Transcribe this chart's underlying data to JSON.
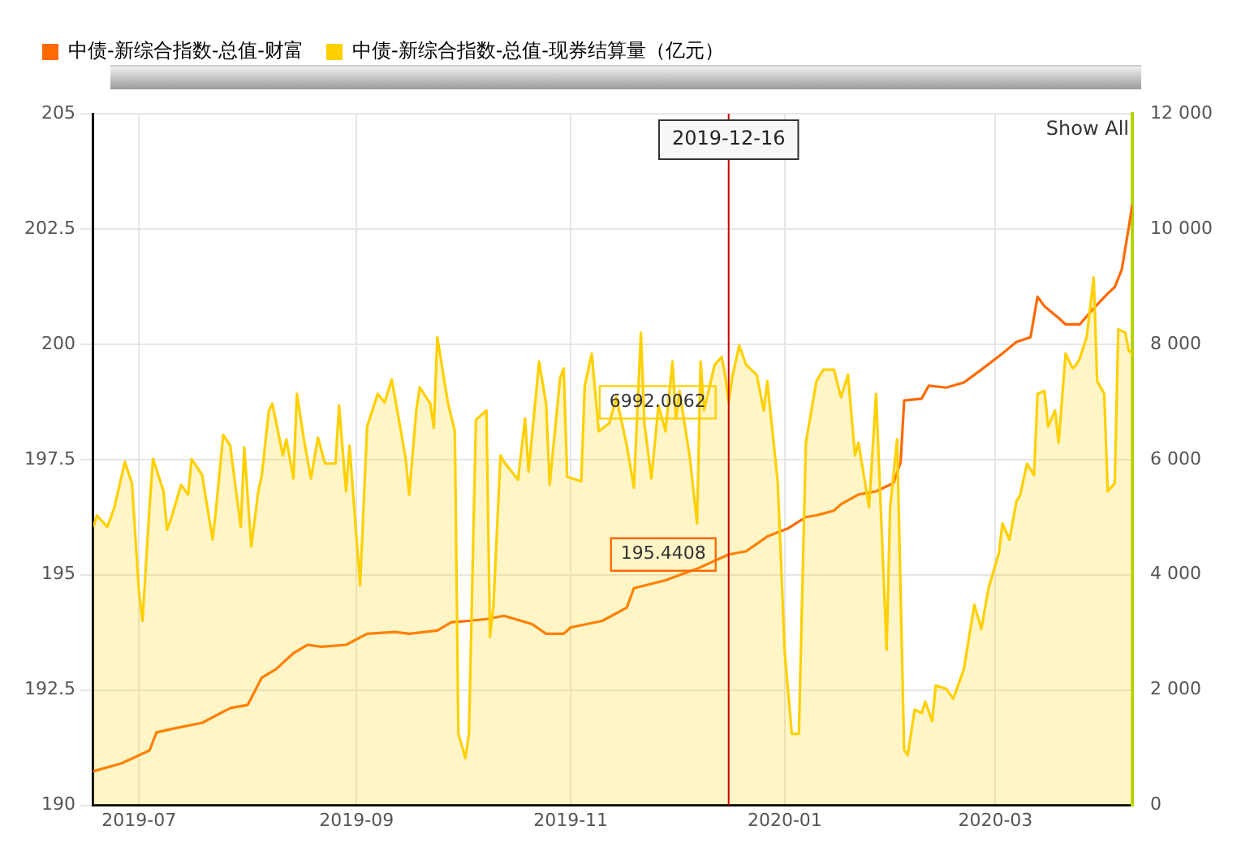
{
  "chart_data": {
    "type": "line",
    "xlim": [
      "2019-06-18",
      "2020-04-09"
    ],
    "xticks": [
      "2019-07",
      "2019-09",
      "2019-11",
      "2020-01",
      "2020-03"
    ],
    "ylim": [
      190,
      205
    ],
    "yticks": [
      190,
      192.5,
      195,
      197.5,
      200,
      202.5,
      205
    ],
    "y2lim": [
      0,
      12000
    ],
    "y2ticks": [
      0,
      {
        "value": 2000,
        "label": "2 000"
      },
      {
        "value": 4000,
        "label": "4 000"
      },
      {
        "value": 6000,
        "label": "6 000"
      },
      {
        "value": 8000,
        "label": "8 000"
      },
      {
        "value": 10000,
        "label": "10 000"
      },
      {
        "value": 12000,
        "label": "12 000"
      }
    ],
    "grid": true,
    "legend": "top left",
    "series": [
      {
        "name": "中债-新综合指数-总值-财富",
        "type": "line",
        "color": "#ff6a00",
        "x": [
          "2019-06-18",
          "2019-06-26",
          "2019-07-04",
          "2019-07-06",
          "2019-07-10",
          "2019-07-19",
          "2019-07-27",
          "2019-08-01",
          "2019-08-05",
          "2019-08-09",
          "2019-08-14",
          "2019-08-18",
          "2019-08-22",
          "2019-08-29",
          "2019-09-04",
          "2019-09-12",
          "2019-09-16",
          "2019-09-24",
          "2019-09-28",
          "2019-10-03",
          "2019-10-08",
          "2019-10-13",
          "2019-10-21",
          "2019-10-25",
          "2019-10-30",
          "2019-11-01",
          "2019-11-10",
          "2019-11-17",
          "2019-11-19",
          "2019-11-28",
          "2019-12-07",
          "2019-12-16",
          "2019-12-21",
          "2019-12-27",
          "2020-01-02",
          "2020-01-07",
          "2020-01-10",
          "2020-01-15",
          "2020-01-17",
          "2020-01-22",
          "2020-01-27",
          "2020-02-01",
          "2020-02-03",
          "2020-02-04",
          "2020-02-09",
          "2020-02-11",
          "2020-02-16",
          "2020-02-21",
          "2020-02-26",
          "2020-03-03",
          "2020-03-07",
          "2020-03-11",
          "2020-03-13",
          "2020-03-15",
          "2020-03-19",
          "2020-03-21",
          "2020-03-25",
          "2020-03-29",
          "2020-04-02",
          "2020-04-04",
          "2020-04-06",
          "2020-04-08",
          "2020-04-09"
        ],
        "values": [
          190.74,
          190.91,
          191.19,
          191.58,
          191.65,
          191.79,
          192.11,
          192.18,
          192.77,
          192.95,
          193.3,
          193.48,
          193.44,
          193.48,
          193.72,
          193.76,
          193.72,
          193.79,
          193.97,
          194.0,
          194.04,
          194.11,
          193.93,
          193.72,
          193.72,
          193.86,
          194.0,
          194.29,
          194.71,
          194.88,
          195.13,
          195.4408,
          195.51,
          195.83,
          196.01,
          196.25,
          196.29,
          196.39,
          196.53,
          196.74,
          196.81,
          196.99,
          197.45,
          198.78,
          198.82,
          199.1,
          199.06,
          199.17,
          199.45,
          199.8,
          200.05,
          200.15,
          201.03,
          200.82,
          200.57,
          200.43,
          200.43,
          200.78,
          201.1,
          201.24,
          201.62,
          202.54,
          203.03
        ],
        "value_labels": [
          null,
          null,
          null,
          null,
          null,
          null,
          null,
          null,
          null,
          null,
          null,
          null,
          null,
          null,
          null,
          null,
          null,
          null,
          null,
          null,
          null,
          null,
          null,
          null,
          null,
          null,
          null,
          null,
          null,
          null,
          null,
          "195.4408",
          null,
          null,
          null,
          null,
          null,
          null,
          null,
          null,
          null,
          null,
          null,
          null,
          null,
          null,
          null,
          null,
          null,
          null,
          null,
          null,
          null,
          null,
          null,
          null,
          null,
          null,
          null,
          null,
          null,
          null,
          null
        ]
      },
      {
        "name": "中债-新综合指数-总值-现券结算量（亿元）",
        "type": "area",
        "axis": "y2",
        "color": "#ffd000",
        "x": [
          "2019-06-18",
          "2019-06-19",
          "2019-06-22",
          "2019-06-24",
          "2019-06-27",
          "2019-06-29",
          "2019-07-01",
          "2019-07-02",
          "2019-07-04",
          "2019-07-05",
          "2019-07-08",
          "2019-07-09",
          "2019-07-10",
          "2019-07-13",
          "2019-07-15",
          "2019-07-16",
          "2019-07-19",
          "2019-07-22",
          "2019-07-23",
          "2019-07-25",
          "2019-07-27",
          "2019-07-30",
          "2019-07-31",
          "2019-08-02",
          "2019-08-04",
          "2019-08-05",
          "2019-08-07",
          "2019-08-08",
          "2019-08-11",
          "2019-08-12",
          "2019-08-14",
          "2019-08-15",
          "2019-08-17",
          "2019-08-19",
          "2019-08-21",
          "2019-08-23",
          "2019-08-26",
          "2019-08-27",
          "2019-08-29",
          "2019-08-30",
          "2019-09-02",
          "2019-09-04",
          "2019-09-07",
          "2019-09-09",
          "2019-09-11",
          "2019-09-13",
          "2019-09-15",
          "2019-09-16",
          "2019-09-18",
          "2019-09-19",
          "2019-09-22",
          "2019-09-23",
          "2019-09-24",
          "2019-09-27",
          "2019-09-29",
          "2019-09-30",
          "2019-10-02",
          "2019-10-03",
          "2019-10-05",
          "2019-10-08",
          "2019-10-09",
          "2019-10-10",
          "2019-10-12",
          "2019-10-13",
          "2019-10-17",
          "2019-10-19",
          "2019-10-20",
          "2019-10-23",
          "2019-10-25",
          "2019-10-26",
          "2019-10-29",
          "2019-10-30",
          "2019-10-31",
          "2019-11-04",
          "2019-11-05",
          "2019-11-07",
          "2019-11-09",
          "2019-11-12",
          "2019-11-14",
          "2019-11-17",
          "2019-11-19",
          "2019-11-21",
          "2019-11-22",
          "2019-11-24",
          "2019-11-26",
          "2019-11-28",
          "2019-11-30",
          "2019-12-01",
          "2019-12-02",
          "2019-12-05",
          "2019-12-07",
          "2019-12-08",
          "2019-12-09",
          "2019-12-12",
          "2019-12-14",
          "2019-12-15",
          "2019-12-16",
          "2019-12-17",
          "2019-12-19",
          "2019-12-21",
          "2019-12-24",
          "2019-12-26",
          "2019-12-27",
          "2019-12-30",
          "2020-01-01",
          "2020-01-03",
          "2020-01-05",
          "2020-01-07",
          "2020-01-10",
          "2020-01-12",
          "2020-01-15",
          "2020-01-17",
          "2020-01-19",
          "2020-01-21",
          "2020-01-22",
          "2020-01-25",
          "2020-01-27",
          "2020-01-30",
          "2020-01-31",
          "2020-02-02",
          "2020-02-04",
          "2020-02-05",
          "2020-02-07",
          "2020-02-09",
          "2020-02-10",
          "2020-02-12",
          "2020-02-13",
          "2020-02-16",
          "2020-02-18",
          "2020-02-21",
          "2020-02-24",
          "2020-02-26",
          "2020-02-28",
          "2020-03-02",
          "2020-03-03",
          "2020-03-05",
          "2020-03-07",
          "2020-03-08",
          "2020-03-10",
          "2020-03-12",
          "2020-03-13",
          "2020-03-15",
          "2020-03-16",
          "2020-03-18",
          "2020-03-19",
          "2020-03-21",
          "2020-03-23",
          "2020-03-24",
          "2020-03-25",
          "2020-03-27",
          "2020-03-29",
          "2020-03-30",
          "2020-04-01",
          "2020-04-02",
          "2020-04-04",
          "2020-04-05",
          "2020-04-07",
          "2020-04-08",
          "2020-04-09"
        ],
        "values": [
          4830,
          5030,
          4830,
          5170,
          5960,
          5590,
          3710,
          3200,
          5170,
          6010,
          5450,
          4780,
          4940,
          5560,
          5390,
          6010,
          5730,
          4610,
          5170,
          6430,
          6240,
          4830,
          6210,
          4490,
          5450,
          5730,
          6850,
          6970,
          6070,
          6350,
          5670,
          7140,
          6350,
          5670,
          6380,
          5930,
          5930,
          6940,
          5450,
          6240,
          3820,
          6570,
          7140,
          6990,
          7390,
          6710,
          6010,
          5390,
          6850,
          7250,
          6970,
          6550,
          8120,
          6990,
          6490,
          1240,
          820,
          1240,
          6690,
          6850,
          2920,
          3480,
          6070,
          5960,
          5650,
          6710,
          5790,
          7700,
          6970,
          5560,
          7420,
          7580,
          5700,
          5620,
          7280,
          7840,
          6490,
          6630,
          7080,
          6240,
          5510,
          8200,
          6630,
          5670,
          6940,
          6490,
          7700,
          6710,
          7190,
          6010,
          4890,
          7700,
          6850,
          7640,
          7780,
          7470,
          6992.0062,
          7420,
          7980,
          7640,
          7470,
          6850,
          7360,
          5590,
          2640,
          1240,
          1240,
          6290,
          7360,
          7560,
          7560,
          7080,
          7470,
          6070,
          6290,
          5170,
          7140,
          2700,
          5170,
          6350,
          960,
          870,
          1660,
          1600,
          1800,
          1460,
          2080,
          2020,
          1850,
          2360,
          3480,
          3060,
          3760,
          4380,
          4890,
          4610,
          5280,
          5370,
          5930,
          5730,
          7140,
          7190,
          6570,
          6850,
          6290,
          7840,
          7580,
          7640,
          7750,
          8120,
          9160,
          7360,
          7140,
          5450,
          5590,
          8260,
          8200,
          7890,
          7840
        ],
        "value_labels": [
          null,
          null,
          null,
          null,
          null,
          null,
          null,
          null,
          null,
          null,
          null,
          null,
          null,
          null,
          null,
          null,
          null,
          null,
          null,
          null,
          null,
          null,
          null,
          null,
          null,
          null,
          null,
          null,
          null,
          null,
          null,
          null,
          null,
          null,
          null,
          null,
          null,
          null,
          null,
          null,
          null,
          null,
          null,
          null,
          null,
          null,
          null,
          null,
          null,
          null,
          null,
          null,
          null,
          null,
          null,
          null,
          null,
          null,
          null,
          null,
          null,
          null,
          null,
          null,
          null,
          null,
          null,
          null,
          null,
          null,
          null,
          null,
          null,
          null,
          null,
          null,
          null,
          null,
          null,
          null,
          null,
          null,
          null,
          null,
          null,
          null,
          null,
          null,
          null,
          null,
          null,
          null,
          null,
          null,
          null,
          null,
          "6992.0062",
          null,
          null,
          null,
          null,
          null,
          null,
          null,
          null,
          null,
          null,
          null,
          null,
          null,
          null,
          null,
          null,
          null,
          null,
          null,
          null,
          null,
          null,
          null,
          null,
          null,
          null,
          null,
          null,
          null,
          null,
          null,
          null,
          null,
          null,
          null,
          null,
          null,
          null,
          null,
          null,
          null,
          null,
          null,
          null,
          null,
          null,
          null,
          null,
          null,
          null,
          null,
          null,
          null,
          null,
          null,
          null,
          null,
          null,
          null,
          null,
          null,
          null
        ]
      }
    ],
    "ref_lines": [
      {
        "axis": "x",
        "value": "2019-12-16",
        "label": "2019-12-16",
        "color": "#cc0000"
      }
    ],
    "annotations": [
      "Show All"
    ]
  }
}
